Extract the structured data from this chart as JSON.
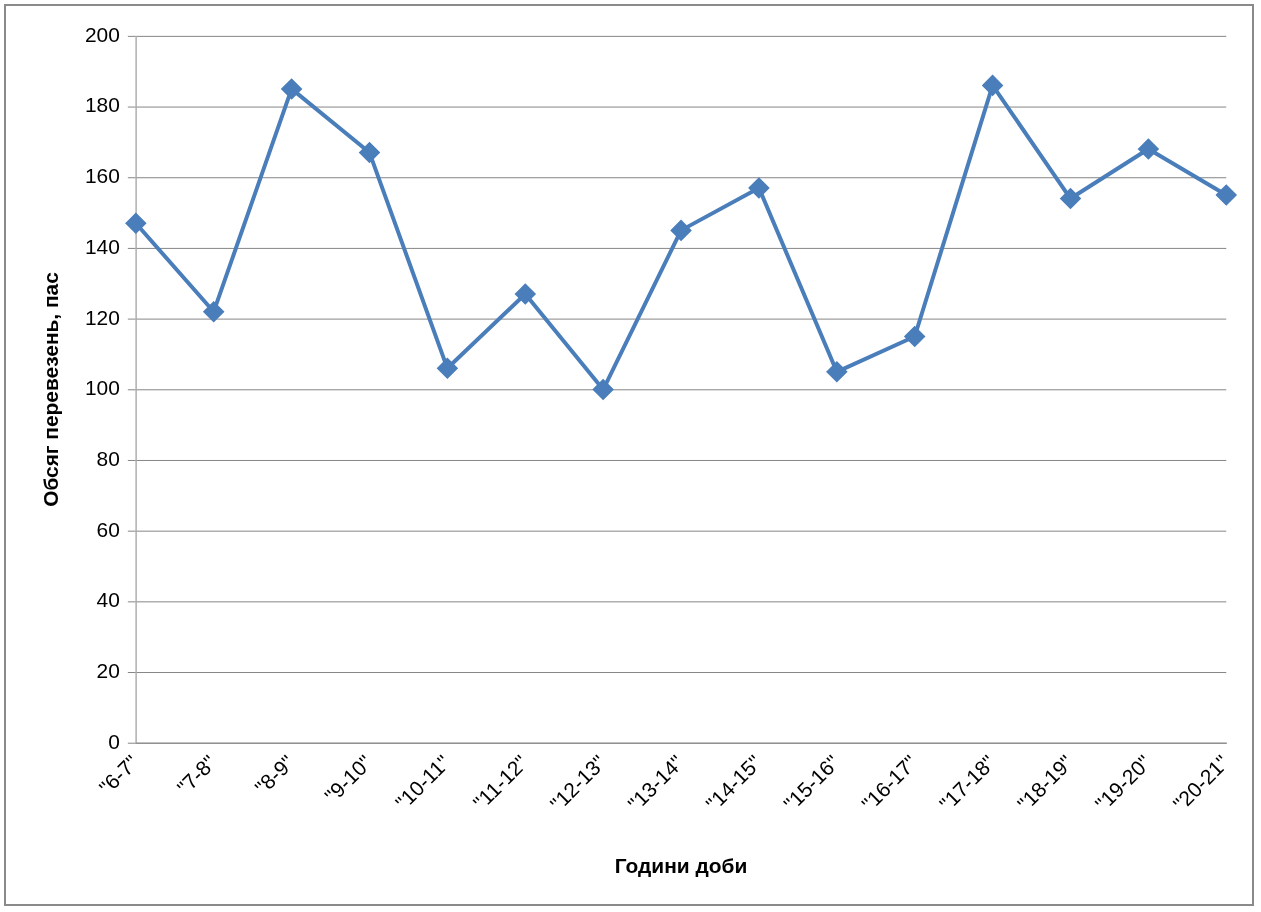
{
  "chart_data": {
    "type": "line",
    "xlabel": "Години доби",
    "ylabel": "Обсяг перевезень, пас",
    "categories": [
      "\"6-7\"",
      "\"7-8\"",
      "\"8-9\"",
      "\"9-10\"",
      "\"10-11\"",
      "\"11-12\"",
      "\"12-13\"",
      "\"13-14\"",
      "\"14-15\"",
      "\"15-16\"",
      "\"16-17\"",
      "\"17-18\"",
      "\"18-19\"",
      "\"19-20\"",
      "\"20-21\""
    ],
    "series": [
      {
        "color": "#4a7ebb",
        "values": [
          147,
          122,
          185,
          167,
          106,
          127,
          100,
          145,
          157,
          105,
          115,
          186,
          154,
          168,
          155
        ]
      }
    ],
    "ylim": [
      0,
      200
    ],
    "yticks": [
      0,
      20,
      40,
      60,
      80,
      100,
      120,
      140,
      160,
      180,
      200
    ],
    "grid": "y",
    "legend": false,
    "marker": "diamond",
    "line_style": "solid"
  }
}
